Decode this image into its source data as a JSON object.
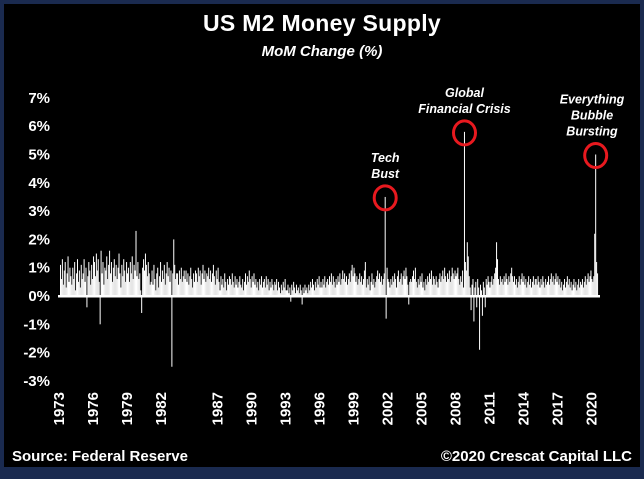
{
  "title": "US M2 Money Supply",
  "subtitle": "MoM Change (%)",
  "footer": {
    "source": "Source: Federal Reserve",
    "copyright": "©2020 Crescat Capital LLC"
  },
  "colors": {
    "background": "#000000",
    "frame": "#1a2a4f",
    "bar": "#ffffff",
    "text": "#ffffff",
    "annotation_circle": "#e8191f"
  },
  "chart_data": {
    "type": "bar",
    "title": "US M2 Money Supply",
    "subtitle": "MoM Change (%)",
    "xlabel": "",
    "ylabel": "MoM Change (%)",
    "grid": false,
    "legend": "none",
    "ylim": [
      -3.5,
      7.2
    ],
    "y_ticks": [
      7,
      6,
      5,
      4,
      3,
      2,
      1,
      0,
      -1,
      -2,
      -3
    ],
    "y_tick_suffix": "%",
    "x_start_year": 1973,
    "x_frequency": "monthly",
    "x_tick_years": [
      1973,
      1976,
      1979,
      1982,
      1987,
      1990,
      1993,
      1996,
      1999,
      2002,
      2005,
      2008,
      2011,
      2014,
      2017,
      2020
    ],
    "series": [
      {
        "name": "US M2 money supply MoM % change",
        "start": "1973-01",
        "end": "2020-06",
        "values": [
          1.1,
          0.6,
          1.3,
          0.4,
          0.9,
          1.2,
          0.3,
          0.8,
          1.4,
          0.5,
          1.0,
          0.7,
          0.4,
          1.0,
          0.6,
          1.2,
          0.2,
          0.8,
          1.3,
          0.5,
          0.9,
          0.3,
          1.1,
          0.6,
          0.8,
          1.3,
          0.5,
          1.0,
          -0.4,
          0.7,
          1.2,
          0.9,
          0.4,
          1.1,
          0.6,
          1.4,
          1.2,
          0.7,
          1.5,
          0.9,
          1.3,
          0.5,
          -1.0,
          1.6,
          0.8,
          1.2,
          0.4,
          1.0,
          0.9,
          1.4,
          0.6,
          1.1,
          1.6,
          0.8,
          1.2,
          0.5,
          1.0,
          1.3,
          0.7,
          1.1,
          0.6,
          1.0,
          1.5,
          0.8,
          0.3,
          1.1,
          0.7,
          1.3,
          0.9,
          0.5,
          1.2,
          0.8,
          1.0,
          0.5,
          1.2,
          0.8,
          1.4,
          0.6,
          1.1,
          0.9,
          2.3,
          0.7,
          1.2,
          0.6,
          0.8,
          0.2,
          -0.6,
          1.0,
          1.3,
          0.9,
          1.5,
          1.1,
          0.7,
          1.2,
          0.8,
          0.4,
          0.5,
          0.9,
          0.4,
          1.1,
          0.6,
          0.2,
          0.8,
          1.0,
          0.3,
          0.7,
          1.2,
          0.5,
          0.9,
          0.6,
          1.1,
          0.4,
          0.8,
          1.2,
          0.7,
          1.0,
          0.5,
          0.9,
          -2.5,
          0.8,
          2.0,
          1.1,
          0.6,
          0.8,
          0.8,
          0.4,
          0.9,
          0.6,
          1.0,
          0.5,
          0.7,
          0.9,
          0.6,
          0.9,
          0.5,
          0.8,
          0.4,
          0.7,
          1.0,
          0.6,
          0.3,
          0.8,
          0.5,
          0.9,
          0.8,
          0.5,
          1.0,
          0.7,
          0.9,
          0.4,
          0.8,
          1.1,
          0.6,
          0.9,
          0.5,
          0.8,
          0.7,
          1.0,
          0.6,
          0.9,
          0.5,
          0.8,
          1.1,
          0.7,
          0.4,
          0.9,
          0.6,
          1.0,
          0.5,
          0.2,
          0.7,
          0.4,
          0.6,
          0.3,
          0.8,
          0.5,
          0.2,
          0.6,
          0.4,
          0.7,
          0.6,
          0.4,
          0.8,
          0.5,
          0.3,
          0.7,
          0.4,
          0.6,
          0.3,
          0.5,
          0.7,
          0.4,
          0.3,
          0.6,
          0.2,
          0.5,
          0.8,
          0.4,
          0.7,
          0.5,
          0.9,
          0.6,
          0.3,
          0.7,
          0.5,
          0.8,
          0.4,
          0.6,
          0.3,
          0.5,
          0.2,
          0.6,
          0.4,
          0.7,
          0.3,
          0.5,
          0.6,
          0.3,
          0.7,
          0.4,
          0.6,
          0.2,
          0.5,
          0.3,
          0.6,
          0.4,
          0.2,
          0.5,
          0.4,
          0.6,
          0.2,
          0.5,
          0.3,
          0.1,
          0.4,
          0.2,
          0.5,
          0.3,
          0.6,
          0.2,
          0.2,
          0.4,
          0.1,
          0.3,
          -0.2,
          0.4,
          0.2,
          0.5,
          0.3,
          0.1,
          0.4,
          0.2,
          0.3,
          0.1,
          0.4,
          0.2,
          -0.3,
          0.3,
          0.1,
          0.4,
          0.2,
          0.3,
          0.1,
          0.4,
          0.2,
          0.5,
          0.3,
          0.6,
          0.4,
          0.2,
          0.5,
          0.3,
          0.6,
          0.4,
          0.7,
          0.3,
          0.5,
          0.3,
          0.6,
          0.4,
          0.7,
          0.3,
          0.5,
          0.6,
          0.4,
          0.7,
          0.5,
          0.8,
          0.4,
          0.7,
          0.5,
          0.3,
          0.6,
          0.4,
          0.7,
          0.5,
          0.8,
          0.4,
          0.6,
          0.9,
          0.6,
          0.8,
          0.5,
          0.7,
          0.4,
          0.6,
          0.8,
          0.5,
          0.9,
          1.1,
          0.7,
          1.0,
          0.8,
          0.5,
          0.7,
          0.4,
          0.6,
          0.8,
          0.5,
          0.7,
          0.4,
          0.6,
          0.9,
          1.2,
          0.3,
          0.6,
          0.4,
          0.7,
          0.2,
          0.5,
          0.8,
          0.4,
          0.6,
          0.3,
          0.5,
          0.7,
          0.9,
          0.6,
          0.8,
          0.5,
          0.7,
          0.4,
          0.6,
          0.8,
          3.5,
          -0.8,
          1.0,
          0.6,
          0.5,
          0.3,
          0.6,
          0.4,
          0.7,
          0.5,
          0.8,
          0.6,
          0.3,
          0.7,
          0.9,
          0.5,
          0.6,
          0.8,
          0.4,
          0.7,
          0.9,
          0.6,
          1.0,
          0.7,
          0.4,
          -0.3,
          0.5,
          0.6,
          0.5,
          0.7,
          0.9,
          0.6,
          1.0,
          0.5,
          0.3,
          0.6,
          0.4,
          0.7,
          0.5,
          0.8,
          0.3,
          0.5,
          0.2,
          0.6,
          0.4,
          0.7,
          0.5,
          0.8,
          0.6,
          0.9,
          0.4,
          0.7,
          0.6,
          0.4,
          0.7,
          0.5,
          0.3,
          0.6,
          0.8,
          0.5,
          0.7,
          0.9,
          0.6,
          1.0,
          0.7,
          0.5,
          0.8,
          0.6,
          0.9,
          0.5,
          0.7,
          1.0,
          0.8,
          0.6,
          0.9,
          0.7,
          0.8,
          1.0,
          0.6,
          0.4,
          0.7,
          0.5,
          0.9,
          0.3,
          5.8,
          1.2,
          0.9,
          1.9,
          1.4,
          0.7,
          0.3,
          -0.5,
          0.4,
          0.6,
          -0.9,
          0.3,
          0.5,
          -0.4,
          0.6,
          0.3,
          -1.9,
          0.4,
          0.2,
          -0.7,
          0.5,
          0.3,
          -0.4,
          0.6,
          0.4,
          0.7,
          0.5,
          0.3,
          0.5,
          0.7,
          0.4,
          0.6,
          0.8,
          1.0,
          1.9,
          1.3,
          0.6,
          0.4,
          0.7,
          0.5,
          0.6,
          0.4,
          0.7,
          0.5,
          0.8,
          0.6,
          0.4,
          0.7,
          0.5,
          0.8,
          1.0,
          0.7,
          0.5,
          0.7,
          0.4,
          0.6,
          0.3,
          0.5,
          0.7,
          0.4,
          0.6,
          0.8,
          0.5,
          0.7,
          0.4,
          0.6,
          0.3,
          0.5,
          0.7,
          0.4,
          0.6,
          0.3,
          0.5,
          0.7,
          0.4,
          0.6,
          0.6,
          0.4,
          0.7,
          0.5,
          0.3,
          0.6,
          0.4,
          0.7,
          0.5,
          0.3,
          0.6,
          0.4,
          0.5,
          0.7,
          0.4,
          0.6,
          0.8,
          0.5,
          0.7,
          0.4,
          0.6,
          0.8,
          0.5,
          0.7,
          0.4,
          0.6,
          0.3,
          0.5,
          0.2,
          0.4,
          0.6,
          0.3,
          0.5,
          0.7,
          0.4,
          0.6,
          0.3,
          0.5,
          0.2,
          0.4,
          0.6,
          0.3,
          0.5,
          0.2,
          0.4,
          0.6,
          0.3,
          0.5,
          0.4,
          0.6,
          0.3,
          0.5,
          0.7,
          0.4,
          0.6,
          0.8,
          0.5,
          0.7,
          0.9,
          0.6,
          0.5,
          0.7,
          2.2,
          5.0,
          1.2,
          0.8
        ]
      }
    ],
    "annotations": [
      {
        "label_lines": [
          "Tech",
          "Bust"
        ],
        "month_index": 344,
        "value": 3.5
      },
      {
        "label_lines": [
          "Global",
          "Financial Crisis"
        ],
        "month_index": 428,
        "value": 5.8
      },
      {
        "label_lines": [
          "Everything",
          "Bubble",
          "Bursting"
        ],
        "month_index": 567,
        "value": 5.0
      }
    ]
  }
}
